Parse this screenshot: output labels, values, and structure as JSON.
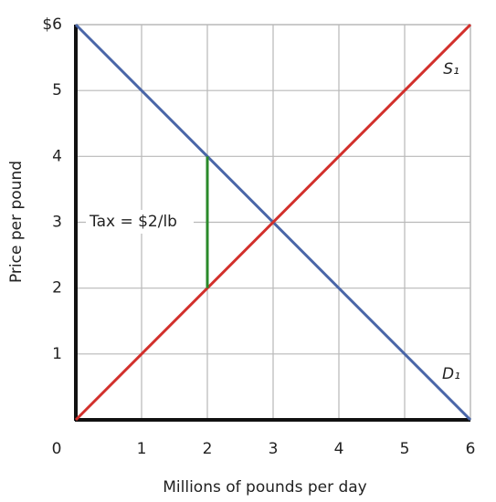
{
  "chart_data": {
    "type": "line",
    "x_label": "Millions of pounds per day",
    "y_label": "Price per pound",
    "xlim": [
      0,
      6
    ],
    "ylim": [
      0,
      6
    ],
    "xticks": [
      0,
      1,
      2,
      3,
      4,
      5,
      6
    ],
    "yticks": [
      1,
      2,
      3,
      4,
      5,
      {
        "value": 6,
        "label": "$6"
      }
    ],
    "grid": true,
    "series": [
      {
        "name": "D₁",
        "color": "#4a66a8",
        "x": [
          0,
          6
        ],
        "values": [
          6,
          0
        ]
      },
      {
        "name": "S₁",
        "color": "#d2302c",
        "x": [
          0,
          6
        ],
        "values": [
          0,
          6
        ]
      }
    ],
    "annotation": {
      "text": "Tax = $2/lb",
      "x": 2,
      "y": [
        2,
        4
      ],
      "color": "#2a8a2a"
    }
  }
}
